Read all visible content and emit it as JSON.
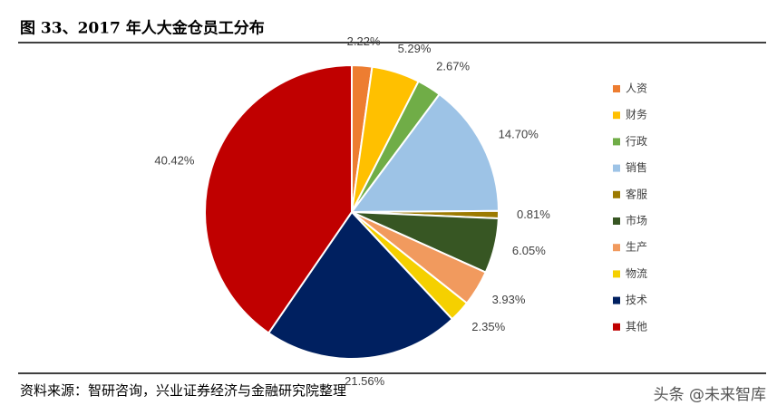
{
  "chart_data": {
    "type": "pie",
    "title": "图 33、2017 年人大金仓员工分布",
    "categories": [
      "人资",
      "财务",
      "行政",
      "销售",
      "客服",
      "市场",
      "生产",
      "物流",
      "技术",
      "其他"
    ],
    "values": [
      2.22,
      5.29,
      2.67,
      14.7,
      0.81,
      6.05,
      3.93,
      2.35,
      21.56,
      40.42
    ],
    "value_labels": [
      "2.22%",
      "5.29%",
      "2.67%",
      "14.70%",
      "0.81%",
      "6.05%",
      "3.93%",
      "2.35%",
      "21.56%",
      "40.42%"
    ],
    "colors": [
      "#ED7D31",
      "#FFC000",
      "#70AD47",
      "#9DC3E6",
      "#9C7A00",
      "#375623",
      "#F19A5E",
      "#F5D000",
      "#002060",
      "#C00000"
    ],
    "legend": "right",
    "source": "资料来源：智研咨询，兴业证券经济与金融研究院整理",
    "watermark": "头条 @未来智库"
  }
}
